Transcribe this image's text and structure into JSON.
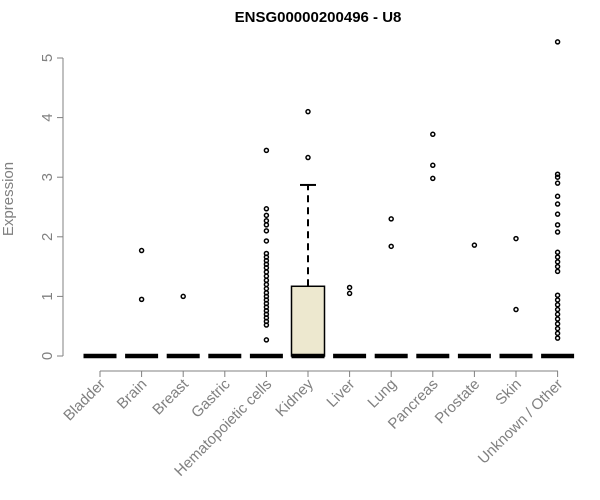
{
  "chart_data": {
    "type": "boxplot",
    "title": "ENSG00000200496 - U8",
    "xlabel": "",
    "ylabel": "Expression",
    "ylim": [
      0,
      5.3
    ],
    "yticks": [
      0,
      1,
      2,
      3,
      4,
      5
    ],
    "grid": false,
    "colors": {
      "box_fill": "#ede8cf",
      "axis": "#808080",
      "marks": "#000000"
    },
    "categories": [
      "Bladder",
      "Brain",
      "Breast",
      "Gastric",
      "Hematopoietic cells",
      "Kidney",
      "Liver",
      "Lung",
      "Pancreas",
      "Prostate",
      "Skin",
      "Unknown / Other"
    ],
    "boxes": [
      {
        "category": "Bladder",
        "q1": 0,
        "median": 0,
        "q3": 0,
        "whisker_low": 0,
        "whisker_high": 0,
        "outliers": []
      },
      {
        "category": "Brain",
        "q1": 0,
        "median": 0,
        "q3": 0,
        "whisker_low": 0,
        "whisker_high": 0,
        "outliers": [
          0.95,
          1.77
        ]
      },
      {
        "category": "Breast",
        "q1": 0,
        "median": 0,
        "q3": 0,
        "whisker_low": 0,
        "whisker_high": 0,
        "outliers": [
          1.0
        ]
      },
      {
        "category": "Gastric",
        "q1": 0,
        "median": 0,
        "q3": 0,
        "whisker_low": 0,
        "whisker_high": 0,
        "outliers": []
      },
      {
        "category": "Hematopoietic cells",
        "q1": 0,
        "median": 0,
        "q3": 0,
        "whisker_low": 0,
        "whisker_high": 0,
        "outliers": [
          0.27,
          0.52,
          0.58,
          0.64,
          0.7,
          0.76,
          0.82,
          0.88,
          0.94,
          1.0,
          1.06,
          1.13,
          1.2,
          1.27,
          1.34,
          1.41,
          1.48,
          1.54,
          1.6,
          1.66,
          1.72,
          1.93,
          2.1,
          2.2,
          2.27,
          2.36,
          2.47,
          3.45
        ]
      },
      {
        "category": "Kidney",
        "q1": 0,
        "median": 0,
        "q3": 1.17,
        "whisker_low": 0,
        "whisker_high": 2.87,
        "outliers": [
          3.33,
          4.1
        ]
      },
      {
        "category": "Liver",
        "q1": 0,
        "median": 0,
        "q3": 0,
        "whisker_low": 0,
        "whisker_high": 0,
        "outliers": [
          1.05,
          1.15
        ]
      },
      {
        "category": "Lung",
        "q1": 0,
        "median": 0,
        "q3": 0,
        "whisker_low": 0,
        "whisker_high": 0,
        "outliers": [
          1.84,
          2.3
        ]
      },
      {
        "category": "Pancreas",
        "q1": 0,
        "median": 0,
        "q3": 0,
        "whisker_low": 0,
        "whisker_high": 0,
        "outliers": [
          2.98,
          3.2,
          3.72
        ]
      },
      {
        "category": "Prostate",
        "q1": 0,
        "median": 0,
        "q3": 0,
        "whisker_low": 0,
        "whisker_high": 0,
        "outliers": [
          1.86
        ]
      },
      {
        "category": "Skin",
        "q1": 0,
        "median": 0,
        "q3": 0,
        "whisker_low": 0,
        "whisker_high": 0,
        "outliers": [
          0.78,
          1.97
        ]
      },
      {
        "category": "Unknown / Other",
        "q1": 0,
        "median": 0,
        "q3": 0,
        "whisker_low": 0,
        "whisker_high": 0,
        "outliers": [
          0.3,
          0.38,
          0.46,
          0.54,
          0.62,
          0.7,
          0.78,
          0.86,
          0.94,
          1.02,
          1.42,
          1.5,
          1.58,
          1.66,
          1.74,
          2.08,
          2.2,
          2.38,
          2.55,
          2.68,
          2.9,
          3.0,
          3.05,
          5.27
        ]
      }
    ]
  }
}
